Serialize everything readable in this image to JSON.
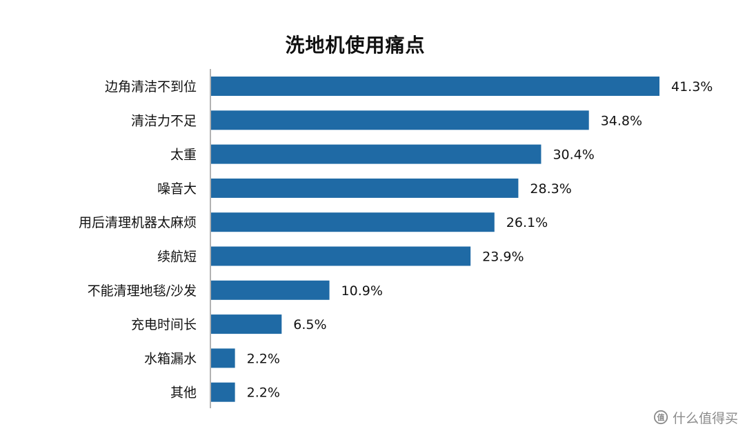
{
  "chart_data": {
    "type": "bar",
    "orientation": "horizontal",
    "title": "洗地机使用痛点",
    "categories": [
      "边角清洁不到位",
      "清洁力不足",
      "太重",
      "噪音大",
      "用后清理机器太麻烦",
      "续航短",
      "不能清理地毯/沙发",
      "充电时间长",
      "水箱漏水",
      "其他"
    ],
    "values": [
      41.3,
      34.8,
      30.4,
      28.3,
      26.1,
      23.9,
      10.9,
      6.5,
      2.2,
      2.2
    ],
    "value_labels": [
      "41.3%",
      "34.8%",
      "30.4%",
      "28.3%",
      "26.1%",
      "23.9%",
      "10.9%",
      "6.5%",
      "2.2%",
      "2.2%"
    ],
    "xlim": [
      0,
      41.3
    ],
    "grid": false,
    "legend": "none",
    "colors": {
      "bar": "#1f6aa5",
      "axis": "#999999",
      "text": "#111111"
    }
  },
  "watermark": {
    "icon": "zhi-logo-icon",
    "text": "什么值得买"
  }
}
